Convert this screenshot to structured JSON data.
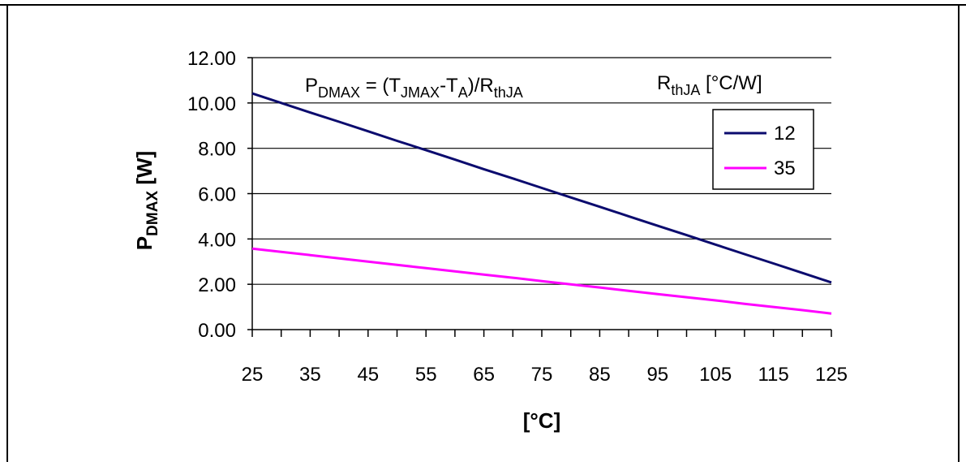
{
  "chart_data": {
    "type": "line",
    "title_parts": {
      "p": "P",
      "p_sub": "DMAX",
      "eq": " = (T",
      "tj_sub": "JMAX",
      "minus": "-T",
      "ta_sub": "A",
      "close": ")/R",
      "r_sub": "thJA"
    },
    "ylabel": {
      "main": "P",
      "sub": "DMAX",
      "unit": " [W]"
    },
    "xlabel": "[°C]",
    "legend_title": {
      "main": "R",
      "sub": "thJA",
      "unit": " [°C/W]"
    },
    "legend_position": "top-right",
    "xlim": [
      25,
      125
    ],
    "ylim": [
      0,
      12
    ],
    "x_ticks": [
      "25",
      "35",
      "45",
      "55",
      "65",
      "75",
      "85",
      "95",
      "105",
      "115",
      "125"
    ],
    "y_ticks": [
      "0.00",
      "2.00",
      "4.00",
      "6.00",
      "8.00",
      "10.00",
      "12.00"
    ],
    "grid": "horizontal",
    "x": [
      25,
      30,
      35,
      40,
      45,
      50,
      55,
      60,
      65,
      70,
      75,
      80,
      85,
      90,
      95,
      100,
      105,
      110,
      115,
      120,
      125
    ],
    "series": [
      {
        "name": "12",
        "color": "#0b0b6e",
        "values": [
          10.42,
          10.0,
          9.58,
          9.17,
          8.75,
          8.33,
          7.92,
          7.5,
          7.08,
          6.67,
          6.25,
          5.83,
          5.42,
          5.0,
          4.58,
          4.17,
          3.75,
          3.33,
          2.92,
          2.5,
          2.08
        ]
      },
      {
        "name": "35",
        "color": "#ff00ff",
        "values": [
          3.57,
          3.43,
          3.29,
          3.14,
          3.0,
          2.86,
          2.71,
          2.57,
          2.43,
          2.29,
          2.14,
          2.0,
          1.86,
          1.71,
          1.57,
          1.43,
          1.29,
          1.14,
          1.0,
          0.86,
          0.71
        ]
      }
    ]
  }
}
